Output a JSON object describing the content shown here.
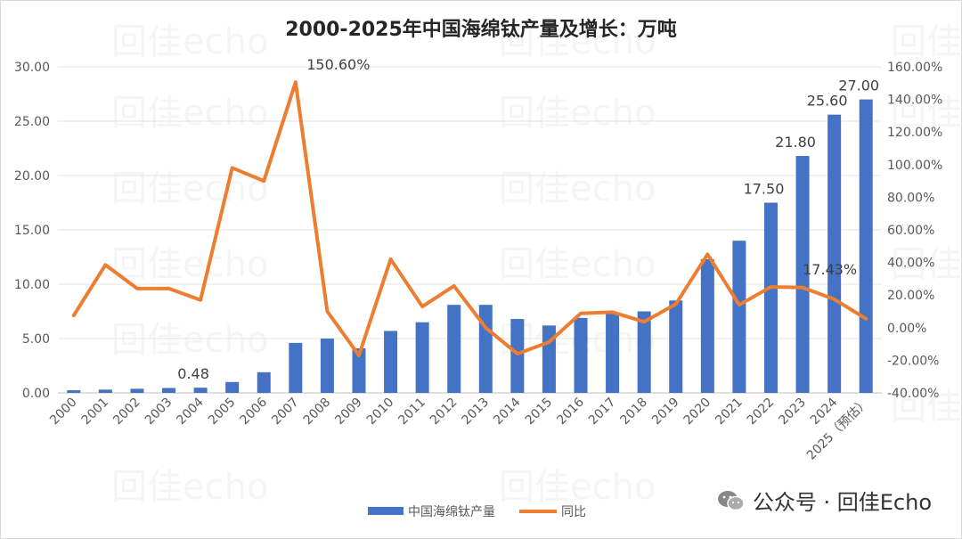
{
  "chart_data": {
    "type": "bar+line",
    "title": "2000-2025年中国海绵钛产量及增长：万吨",
    "categories": [
      "2000",
      "2001",
      "2002",
      "2003",
      "2004",
      "2005",
      "2006",
      "2007",
      "2008",
      "2009",
      "2010",
      "2011",
      "2012",
      "2013",
      "2014",
      "2015",
      "2016",
      "2017",
      "2018",
      "2019",
      "2020",
      "2021",
      "2022",
      "2023",
      "2024",
      "2025（预估）"
    ],
    "series": [
      {
        "name": "中国海绵钛产量",
        "type": "bar",
        "axis": "left",
        "color": "#4472C4",
        "values": [
          0.25,
          0.3,
          0.38,
          0.45,
          0.48,
          1.0,
          1.9,
          4.6,
          5.0,
          4.1,
          5.7,
          6.5,
          8.1,
          8.1,
          6.8,
          6.2,
          6.9,
          7.3,
          7.5,
          8.5,
          12.3,
          14.0,
          17.5,
          21.8,
          25.6,
          27.0
        ]
      },
      {
        "name": "同比",
        "type": "line",
        "axis": "right",
        "color": "#ED7D31",
        "values": [
          7.5,
          38.5,
          24,
          24,
          17,
          98,
          90,
          150.6,
          10,
          -17,
          42,
          13,
          25.6,
          0,
          -16,
          -8.8,
          8.8,
          9.5,
          3.6,
          14.5,
          45,
          14,
          25,
          24.6,
          17.43,
          5.5
        ]
      }
    ],
    "data_labels": [
      {
        "series": 0,
        "index": 4,
        "text": "0.48"
      },
      {
        "series": 0,
        "index": 22,
        "text": "17.50"
      },
      {
        "series": 0,
        "index": 23,
        "text": "21.80"
      },
      {
        "series": 0,
        "index": 24,
        "text": "25.60"
      },
      {
        "series": 0,
        "index": 25,
        "text": "27.00"
      },
      {
        "series": 1,
        "index": 7,
        "text": "150.60%"
      },
      {
        "series": 1,
        "index": 24,
        "text": "17.43%"
      }
    ],
    "y_left": {
      "range": [
        0,
        30
      ],
      "ticks": [
        "0.00",
        "5.00",
        "10.00",
        "15.00",
        "20.00",
        "25.00",
        "30.00"
      ]
    },
    "y_right": {
      "range": [
        -40,
        160
      ],
      "ticks": [
        "-40.00%",
        "-20.00%",
        "0.00%",
        "20.00%",
        "40.00%",
        "60.00%",
        "80.00%",
        "100.00%",
        "120.00%",
        "140.00%",
        "160.00%"
      ]
    },
    "grid": true,
    "legend": "bottom"
  },
  "watermark": "回佳echo",
  "brand": {
    "text": "公众号 · 回佳Echo",
    "icon": "wechat-icon"
  }
}
